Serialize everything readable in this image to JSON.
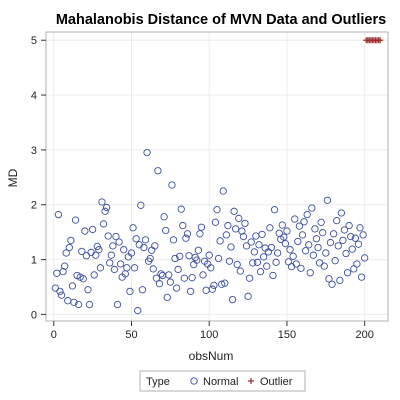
{
  "chart_data": {
    "type": "scatter",
    "title": "Mahalanobis Distance of MVN Data and Outliers",
    "xlabel": "obsNum",
    "ylabel": "MD",
    "xlim": [
      -5,
      215
    ],
    "ylim": [
      -0.12,
      5.15
    ],
    "xticks": [
      "0",
      "50",
      "100",
      "150",
      "200"
    ],
    "yticks": [
      "0",
      "1",
      "2",
      "3",
      "4",
      "5"
    ],
    "grid": true,
    "legend": {
      "title": "Type",
      "placement": "bottom",
      "entries": [
        "Normal",
        "Outlier"
      ]
    },
    "colors": {
      "normal": "#3b4f9e",
      "outlier": "#9b2a2a",
      "frame": "#b0b0b0",
      "grid": "#ececec"
    },
    "series": [
      {
        "name": "Normal",
        "marker": "circle",
        "x": [
          1,
          2,
          3,
          4,
          5,
          6,
          7,
          8,
          9,
          10,
          11,
          12,
          13,
          14,
          15,
          16,
          17,
          18,
          19,
          20,
          21,
          22,
          23,
          24,
          25,
          26,
          27,
          28,
          29,
          30,
          31,
          32,
          33,
          34,
          35,
          36,
          37,
          38,
          39,
          40,
          41,
          42,
          43,
          44,
          45,
          46,
          47,
          48,
          49,
          50,
          51,
          52,
          53,
          54,
          55,
          56,
          57,
          58,
          59,
          60,
          61,
          62,
          63,
          64,
          65,
          66,
          67,
          68,
          69,
          70,
          71,
          72,
          73,
          74,
          75,
          76,
          77,
          78,
          79,
          80,
          81,
          82,
          83,
          84,
          85,
          86,
          87,
          88,
          89,
          90,
          91,
          92,
          93,
          94,
          95,
          96,
          97,
          98,
          99,
          100,
          101,
          102,
          103,
          104,
          105,
          106,
          107,
          108,
          109,
          110,
          111,
          112,
          113,
          114,
          115,
          116,
          117,
          118,
          119,
          120,
          121,
          122,
          123,
          124,
          125,
          126,
          127,
          128,
          129,
          130,
          131,
          132,
          133,
          134,
          135,
          136,
          137,
          138,
          139,
          140,
          141,
          142,
          143,
          144,
          145,
          146,
          147,
          148,
          149,
          150,
          151,
          152,
          153,
          154,
          155,
          156,
          157,
          158,
          159,
          160,
          161,
          162,
          163,
          164,
          165,
          166,
          167,
          168,
          169,
          170,
          171,
          172,
          173,
          174,
          175,
          176,
          177,
          178,
          179,
          180,
          181,
          182,
          183,
          184,
          185,
          186,
          187,
          188,
          189,
          190,
          191,
          192,
          193,
          194,
          195,
          196,
          197,
          198,
          199,
          200
        ],
        "y": [
          0.48,
          0.75,
          1.82,
          0.42,
          0.35,
          0.78,
          0.88,
          1.12,
          0.25,
          1.22,
          1.35,
          0.52,
          0.22,
          1.72,
          0.71,
          0.18,
          0.68,
          1.15,
          0.65,
          1.52,
          1.07,
          0.45,
          0.18,
          1.13,
          1.55,
          0.72,
          1.08,
          1.24,
          1.18,
          0.85,
          2.05,
          1.65,
          1.88,
          1.95,
          1.43,
          0.94,
          1.08,
          1.25,
          0.82,
          1.42,
          0.18,
          1.32,
          0.92,
          0.68,
          1.18,
          0.74,
          0.85,
          1.05,
          0.42,
          1.12,
          1.58,
          0.85,
          1.38,
          0.07,
          1.27,
          1.99,
          0.45,
          1.22,
          1.36,
          2.95,
          0.97,
          1.02,
          1.17,
          0.83,
          1.25,
          0.66,
          2.62,
          0.56,
          0.74,
          0.71,
          1.78,
          1.53,
          0.31,
          0.72,
          0.59,
          2.36,
          1.36,
          1.02,
          0.48,
          0.82,
          1.06,
          1.92,
          1.62,
          0.66,
          1.39,
          1.47,
          1.07,
          0.42,
          0.67,
          0.91,
          1.04,
          0.99,
          1.17,
          1.47,
          1.59,
          0.72,
          0.97,
          0.44,
          0.92,
          1.08,
          0.85,
          0.46,
          0.53,
          1.68,
          1.91,
          1.02,
          1.34,
          0.55,
          2.25,
          0.57,
          1.45,
          1.62,
          0.97,
          1.23,
          0.27,
          1.88,
          1.56,
          0.91,
          1.75,
          0.79,
          1.52,
          1.42,
          1.66,
          1.25,
          0.33,
          0.66,
          1.32,
          0.94,
          1.14,
          1.43,
          0.95,
          1.27,
          0.78,
          1.46,
          1.05,
          1.21,
          0.88,
          1.14,
          1.58,
          1.22,
          0.71,
          1.91,
          0.95,
          1.12,
          1.48,
          1.37,
          1.63,
          1.41,
          1.29,
          1.52,
          0.96,
          1.18,
          0.87,
          1.06,
          1.74,
          0.92,
          1.33,
          1.61,
          0.84,
          1.45,
          1.69,
          1.16,
          1.82,
          1.27,
          0.76,
          1.94,
          1.08,
          1.56,
          1.38,
          1.22,
          0.94,
          1.68,
          1.49,
          0.88,
          1.12,
          2.08,
          0.65,
          1.31,
          0.55,
          1.47,
          0.98,
          1.71,
          1.25,
          0.62,
          1.85,
          1.35,
          1.54,
          1.11,
          0.76,
          1.62,
          1.42,
          1.19,
          0.83,
          1.39,
          0.92,
          1.28,
          1.58,
          0.68,
          1.45,
          1.03
        ]
      },
      {
        "name": "Outlier",
        "marker": "plus",
        "x": [
          201,
          202,
          203,
          204,
          205,
          206,
          207,
          208,
          209,
          210
        ],
        "y": [
          5,
          5,
          5,
          5,
          5,
          5,
          5,
          5,
          5,
          5
        ]
      }
    ]
  }
}
